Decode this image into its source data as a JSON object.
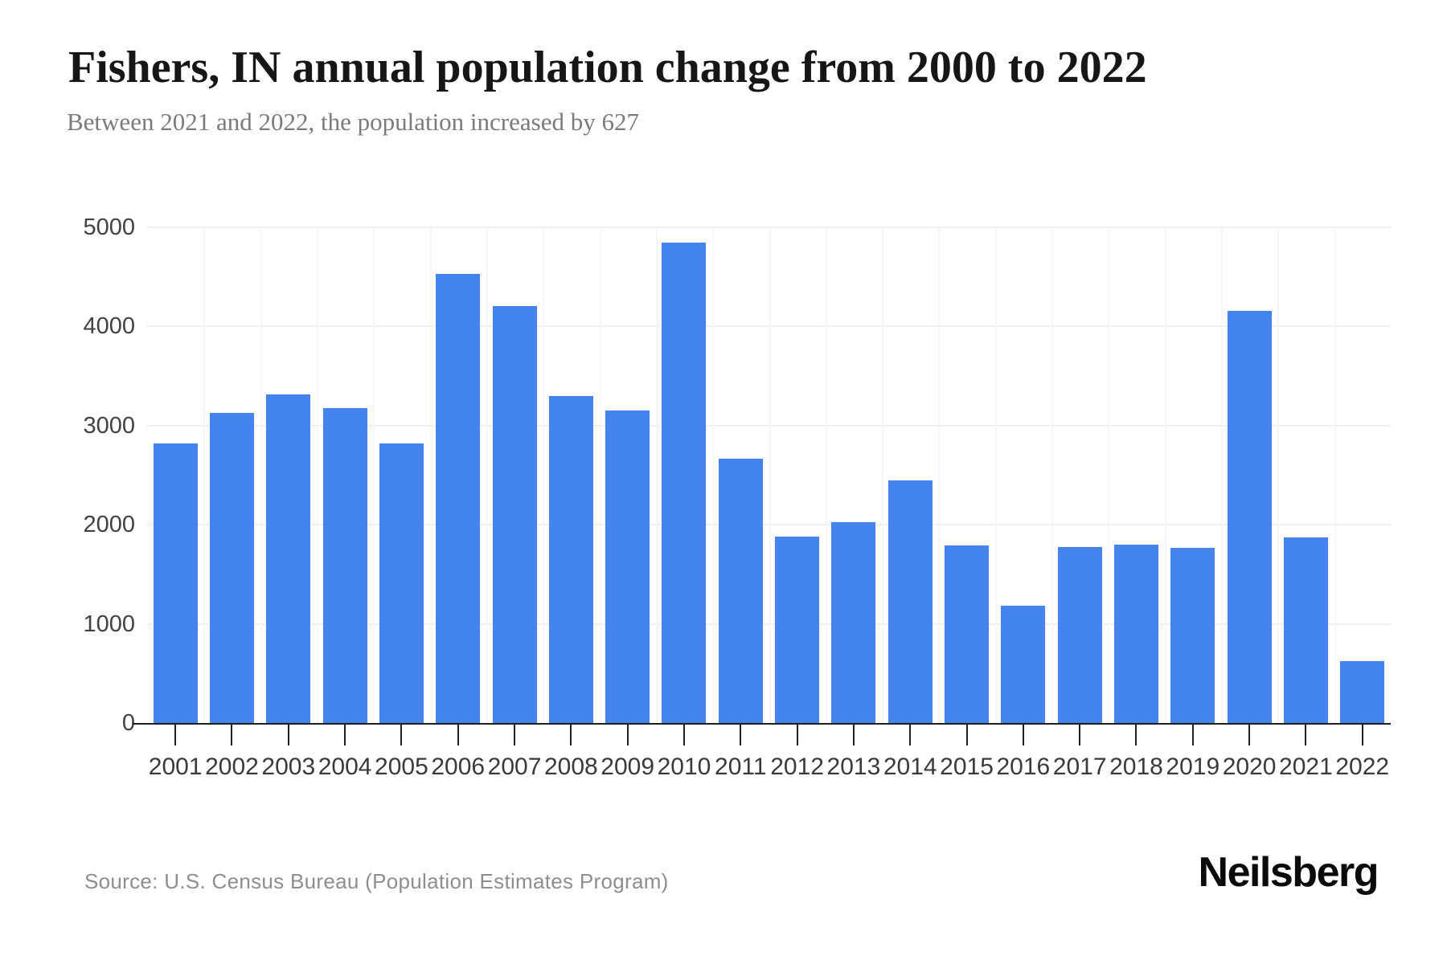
{
  "header": {
    "title": "Fishers, IN annual population change from 2000 to 2022",
    "subtitle": "Between 2021 and 2022, the population increased by 627"
  },
  "footer": {
    "source": "Source: U.S. Census Bureau (Population Estimates Program)",
    "brand": "Neilsberg"
  },
  "colors": {
    "bar": "#4484ee",
    "axis_line": "#1f1f1f",
    "grid_line": "#f0f0f0",
    "title_text": "#161616",
    "subtitle_text": "#7b7b7b",
    "axis_label_text": "#3a3a3a"
  },
  "chart_data": {
    "type": "bar",
    "title": "Fishers, IN annual population change from 2000 to 2022",
    "subtitle": "Between 2021 and 2022, the population increased by 627",
    "categories": [
      "2001",
      "2002",
      "2003",
      "2004",
      "2005",
      "2006",
      "2007",
      "2008",
      "2009",
      "2010",
      "2011",
      "2012",
      "2013",
      "2014",
      "2015",
      "2016",
      "2017",
      "2018",
      "2019",
      "2020",
      "2021",
      "2022"
    ],
    "values": [
      2820,
      3125,
      3315,
      3180,
      2820,
      4530,
      4210,
      3300,
      3150,
      4845,
      2670,
      1880,
      2025,
      2445,
      1790,
      1180,
      1775,
      1800,
      1765,
      4160,
      1870,
      627
    ],
    "xlabel": "",
    "ylabel": "",
    "ylim": [
      0,
      5000
    ],
    "yticks": [
      5000,
      4000,
      3000,
      2000,
      1000,
      0
    ],
    "grid": "horizontal-faint",
    "legend": "none",
    "bar_color": "#4484ee"
  }
}
